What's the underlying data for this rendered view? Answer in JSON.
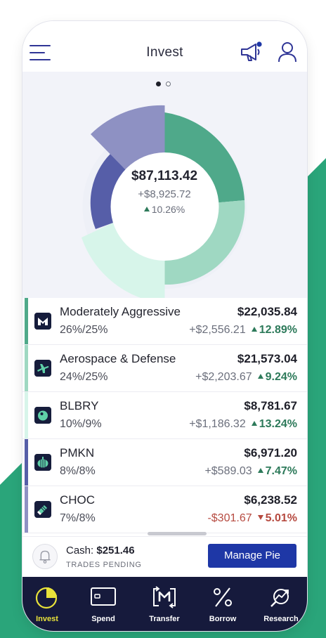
{
  "header": {
    "title": "Invest",
    "menu_icon": "hamburger-menu-icon",
    "notify_icon": "megaphone-icon",
    "profile_icon": "user-icon"
  },
  "carousel": {
    "pages": 2,
    "active": 0
  },
  "portfolio": {
    "total": "$87,113.42",
    "gain": "+$8,925.72",
    "gain_pct": "10.26%"
  },
  "colors": {
    "moderately_aggressive": "#4fa98a",
    "aerospace": "#9fd8c2",
    "blbry": "#d7f5ea",
    "pmkn": "#565ea8",
    "choc": "#8e91c3",
    "up": "#2d7a5a",
    "down": "#b64a40",
    "accent": "#1e37a6",
    "tabbar": "#161a3c",
    "active_tab": "#e8e23a"
  },
  "holdings": [
    {
      "name": "Moderately Aggressive",
      "alloc": "26%/25%",
      "value": "$22,035.84",
      "gain": "+$2,556.21",
      "pct": "12.89%",
      "dir": "up",
      "icon": "m-logo-icon",
      "color": "#4fa98a"
    },
    {
      "name": "Aerospace & Defense",
      "alloc": "24%/25%",
      "value": "$21,573.04",
      "gain": "+$2,203.67",
      "pct": "9.24%",
      "dir": "up",
      "icon": "airplane-icon",
      "color": "#9fd8c2"
    },
    {
      "name": "BLBRY",
      "alloc": "10%/9%",
      "value": "$8,781.67",
      "gain": "+$1,186.32",
      "pct": "13.24%",
      "dir": "up",
      "icon": "blueberry-icon",
      "color": "#d7f5ea"
    },
    {
      "name": "PMKN",
      "alloc": "8%/8%",
      "value": "$6,971.20",
      "gain": "+$589.03",
      "pct": "7.47%",
      "dir": "up",
      "icon": "pumpkin-icon",
      "color": "#565ea8"
    },
    {
      "name": "CHOC",
      "alloc": "7%/8%",
      "value": "$6,238.52",
      "gain": "-$301.67",
      "pct": "5.01%",
      "dir": "down",
      "icon": "chocolate-icon",
      "color": "#8e91c3"
    }
  ],
  "cash": {
    "label": "Cash:",
    "amount": "$251.46",
    "status": "TRADES PENDING",
    "button": "Manage Pie",
    "icon": "bell-icon"
  },
  "tabs": [
    {
      "label": "Invest",
      "icon": "pie-chart-icon",
      "active": true
    },
    {
      "label": "Spend",
      "icon": "card-icon",
      "active": false
    },
    {
      "label": "Transfer",
      "icon": "transfer-icon",
      "active": false
    },
    {
      "label": "Borrow",
      "icon": "percent-icon",
      "active": false
    },
    {
      "label": "Research",
      "icon": "research-icon",
      "active": false
    }
  ]
}
